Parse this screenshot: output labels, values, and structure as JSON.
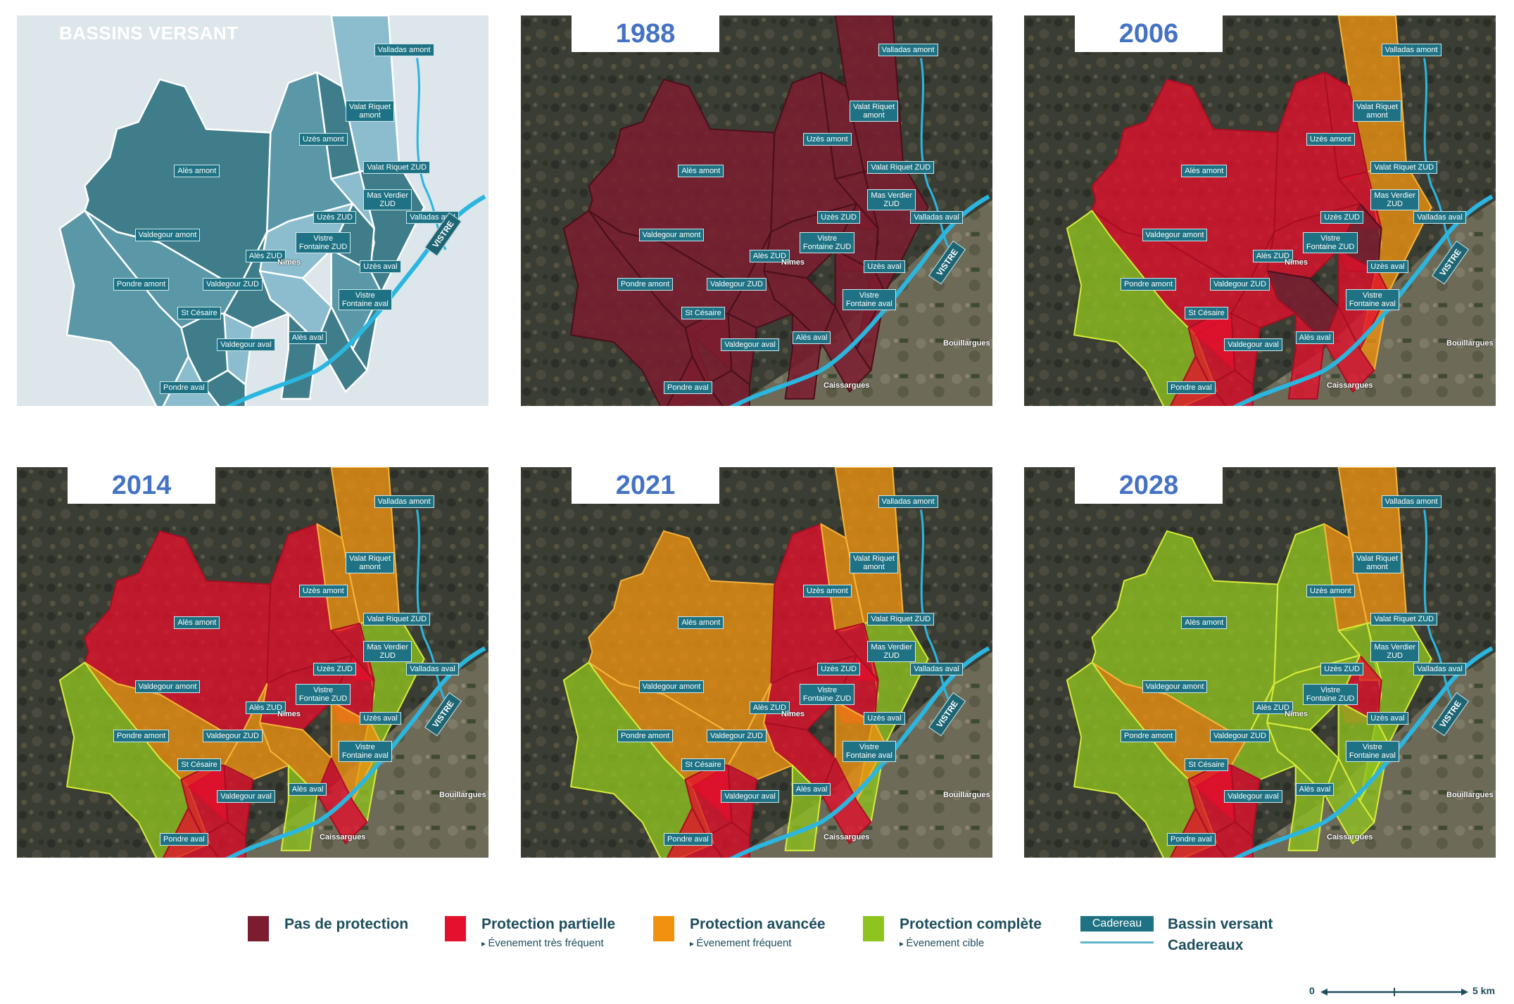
{
  "colors": {
    "pas_de_protection": "#7b1c2f",
    "protection_partielle": "#e4102c",
    "protection_avancee": "#f0920f",
    "protection_complete": "#8fc31f",
    "cadereau_label_bg": "#1e7283",
    "cadereaux_line": "#5fb6c8",
    "year_text": "#4472c4",
    "legend_text": "#1e4e5c",
    "vistre_river": "#2bb6e0"
  },
  "overview_panel": {
    "title": "BASSINS VERSANT",
    "vistre_label": "VISTRE",
    "town": "Nîmes"
  },
  "basins": [
    {
      "id": "valladas_amont",
      "label": "Valladas amont"
    },
    {
      "id": "valat_riquet_amont",
      "label": "Valat Riquet\namont"
    },
    {
      "id": "uzes_amont",
      "label": "Uzès amont"
    },
    {
      "id": "valat_riquet_zud",
      "label": "Valat Riquet ZUD"
    },
    {
      "id": "ales_amont",
      "label": "Alès amont"
    },
    {
      "id": "mas_verdier_zud",
      "label": "Mas Verdier\nZUD"
    },
    {
      "id": "uzes_zud",
      "label": "Uzès ZUD"
    },
    {
      "id": "valladas_aval",
      "label": "Valladas aval"
    },
    {
      "id": "valdegour_amont",
      "label": "Valdegour amont"
    },
    {
      "id": "vistre_fontaine_zud",
      "label": "Vistre\nFontaine ZUD"
    },
    {
      "id": "ales_zud",
      "label": "Alès ZUD"
    },
    {
      "id": "uzes_aval",
      "label": "Uzès aval"
    },
    {
      "id": "pondre_amont",
      "label": "Pondre amont"
    },
    {
      "id": "valdegour_zud",
      "label": "Valdegour ZUD"
    },
    {
      "id": "vistre_fontaine_aval",
      "label": "Vistre\nFontaine aval"
    },
    {
      "id": "st_cesaire",
      "label": "St Césaire"
    },
    {
      "id": "ales_aval",
      "label": "Alès aval"
    },
    {
      "id": "valdegour_aval",
      "label": "Valdegour aval"
    },
    {
      "id": "pondre_aval",
      "label": "Pondre aval"
    }
  ],
  "map_towns": {
    "nimes": "Nîmes",
    "bouillargues": "Bouillargues",
    "caissargues": "Caissargues",
    "vistre": "VISTRE"
  },
  "years": [
    {
      "year": "1988",
      "status": {
        "valladas_amont": "none",
        "valat_riquet_amont": "none",
        "uzes_amont": "none",
        "valat_riquet_zud": "none",
        "ales_amont": "none",
        "mas_verdier_zud": "none",
        "uzes_zud": "none",
        "valladas_aval": "none",
        "valdegour_amont": "none",
        "vistre_fontaine_zud": "none",
        "ales_zud": "none",
        "uzes_aval": "none",
        "pondre_amont": "none",
        "valdegour_zud": "none",
        "vistre_fontaine_aval": "none",
        "st_cesaire": "none",
        "ales_aval": "none",
        "valdegour_aval": "none",
        "pondre_aval": "none"
      }
    },
    {
      "year": "2006",
      "status": {
        "valladas_amont": "advanced",
        "valat_riquet_amont": "partial",
        "uzes_amont": "partial",
        "valat_riquet_zud": "partial",
        "ales_amont": "partial",
        "mas_verdier_zud": "none",
        "uzes_zud": "partial",
        "valladas_aval": "advanced",
        "valdegour_amont": "partial",
        "vistre_fontaine_zud": "none",
        "ales_zud": "partial",
        "uzes_aval": "partial",
        "pondre_amont": "complete",
        "valdegour_zud": "partial",
        "vistre_fontaine_aval": "partial",
        "st_cesaire": "partial",
        "ales_aval": "partial",
        "valdegour_aval": "partial",
        "pondre_aval": "partial"
      }
    },
    {
      "year": "2014",
      "status": {
        "valladas_amont": "advanced",
        "valat_riquet_amont": "advanced",
        "uzes_amont": "partial",
        "valat_riquet_zud": "partial",
        "ales_amont": "partial",
        "mas_verdier_zud": "partial",
        "uzes_zud": "partial",
        "valladas_aval": "complete",
        "valdegour_amont": "advanced",
        "vistre_fontaine_zud": "advanced",
        "ales_zud": "advanced",
        "uzes_aval": "advanced",
        "pondre_amont": "complete",
        "valdegour_zud": "partial",
        "vistre_fontaine_aval": "partial",
        "st_cesaire": "partial",
        "ales_aval": "complete",
        "valdegour_aval": "partial",
        "pondre_aval": "partial"
      }
    },
    {
      "year": "2021",
      "status": {
        "valladas_amont": "advanced",
        "valat_riquet_amont": "advanced",
        "uzes_amont": "partial",
        "valat_riquet_zud": "partial",
        "ales_amont": "advanced",
        "mas_verdier_zud": "partial",
        "uzes_zud": "partial",
        "valladas_aval": "complete",
        "valdegour_amont": "advanced",
        "vistre_fontaine_zud": "partial",
        "ales_zud": "advanced",
        "uzes_aval": "advanced",
        "pondre_amont": "complete",
        "valdegour_zud": "partial",
        "vistre_fontaine_aval": "partial",
        "st_cesaire": "partial",
        "ales_aval": "complete",
        "valdegour_aval": "partial",
        "pondre_aval": "partial"
      }
    },
    {
      "year": "2028",
      "status": {
        "valladas_amont": "advanced",
        "valat_riquet_amont": "advanced",
        "uzes_amont": "complete",
        "valat_riquet_zud": "complete",
        "ales_amont": "complete",
        "mas_verdier_zud": "partial",
        "uzes_zud": "complete",
        "valladas_aval": "complete",
        "valdegour_amont": "advanced",
        "vistre_fontaine_zud": "complete",
        "ales_zud": "complete",
        "uzes_aval": "complete",
        "pondre_amont": "complete",
        "valdegour_zud": "partial",
        "vistre_fontaine_aval": "complete",
        "st_cesaire": "partial",
        "ales_aval": "complete",
        "valdegour_aval": "partial",
        "pondre_aval": "partial"
      }
    }
  ],
  "legend": {
    "items": [
      {
        "key": "none",
        "label": "Pas de protection",
        "sub": ""
      },
      {
        "key": "partial",
        "label": "Protection partielle",
        "sub": "Évenement très fréquent"
      },
      {
        "key": "advanced",
        "label": "Protection avancée",
        "sub": "Évenement fréquent"
      },
      {
        "key": "complete",
        "label": "Protection complète",
        "sub": "Évenement cible"
      }
    ],
    "cadereau_box": "Cadereau",
    "bassin_versant": "Bassin versant",
    "cadereaux": "Cadereaux"
  },
  "scale": {
    "start": "0",
    "end": "5 km"
  }
}
